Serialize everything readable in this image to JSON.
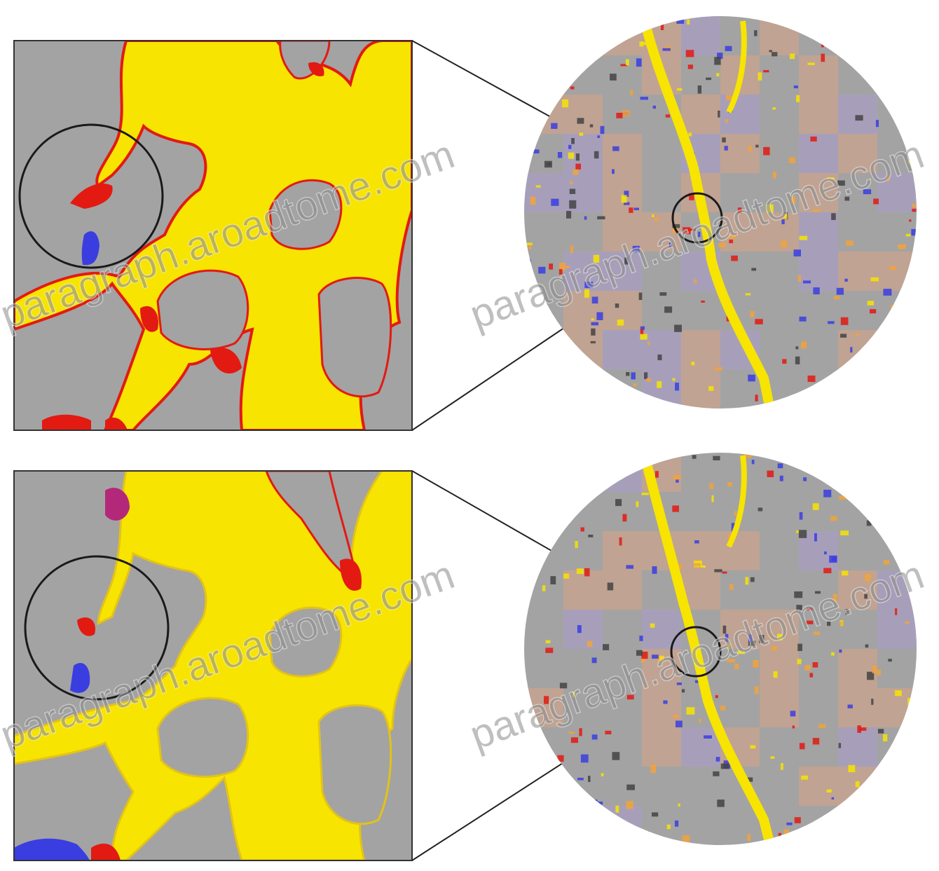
{
  "figure": {
    "colors": {
      "background": "#ffffff",
      "grain": "#a3a3a3",
      "pore": "#f7e400",
      "pore_light": "#fbe96a",
      "interface": "#e21a12",
      "interface_orange": "#f2a33a",
      "blue_phase": "#3a3ee0",
      "tile_pink": "#c9a38c",
      "tile_violet": "#a89ec2",
      "outline": "#1a1a1a"
    },
    "panels": [
      {
        "id": "top",
        "zoom_view": "square-detail",
        "overview": "circular-sample"
      },
      {
        "id": "bottom",
        "zoom_view": "square-detail",
        "overview": "circular-sample"
      }
    ]
  },
  "watermark": {
    "text": "paragraph.aroadtome.com",
    "text_alt": "paragraph.aroadtome.com"
  }
}
